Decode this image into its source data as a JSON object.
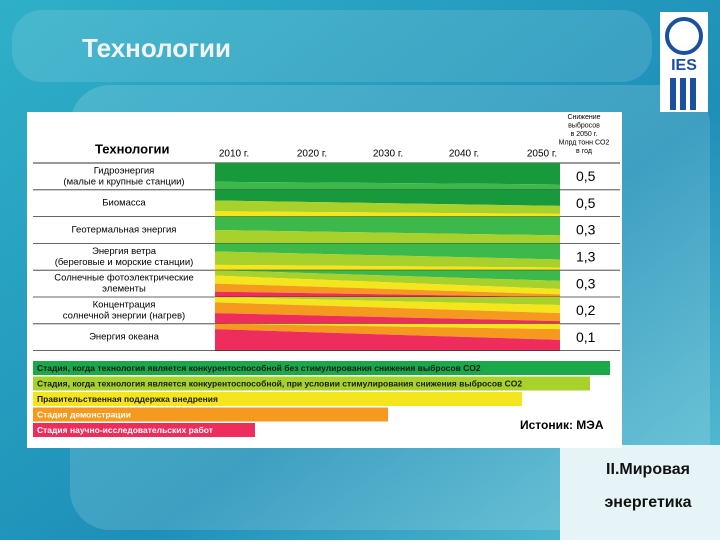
{
  "header": {
    "title": "Технологии",
    "logo": "IES"
  },
  "table": {
    "title": "Технологии",
    "years": [
      "2010 г.",
      "2020 г.",
      "2030 г.",
      "2040 г.",
      "2050 г."
    ],
    "value_header": [
      "Снижение",
      "выбросов",
      "в 2050 г.",
      "Млрд тонн CO2",
      "в год"
    ],
    "rows": [
      {
        "label": [
          "Гидроэнергия",
          "(малые и крупные станции)"
        ],
        "value": "0,5"
      },
      {
        "label": [
          "Биомасса"
        ],
        "value": "0,5"
      },
      {
        "label": [
          "Геотермальная энергия"
        ],
        "value": "0,3"
      },
      {
        "label": [
          "Энергия ветра",
          "(береговые и морские станции)"
        ],
        "value": "1,3"
      },
      {
        "label": [
          "Солнечные фотоэлектрические",
          "элементы"
        ],
        "value": "0,3"
      },
      {
        "label": [
          "Концентрация",
          "солнечной энергии (нагрев)"
        ],
        "value": "0,2"
      },
      {
        "label": [
          "Энергия океана"
        ],
        "value": "0,1"
      }
    ]
  },
  "legend": [
    "Стадия, когда технология является конкурентоспособной без стимулирования снижения выбросов CO2",
    "Стадия, когда технология является конкурентоспособной, при условии стимулирования снижения выбросов CO2",
    "Правительственная поддержка внедрения",
    "Стадия демонстрации",
    "Стадия научно-исследовательских работ"
  ],
  "source": "Истоник: МЭА",
  "footer": [
    "II.Мировая",
    "энергетика"
  ]
}
